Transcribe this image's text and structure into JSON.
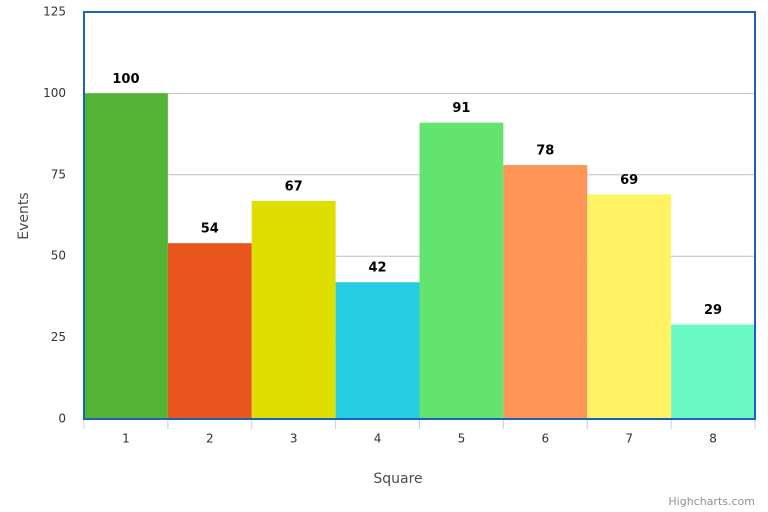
{
  "chart_data": {
    "type": "bar",
    "x_label": "Square",
    "y_label": "Events",
    "categories": [
      "1",
      "2",
      "3",
      "4",
      "5",
      "6",
      "7",
      "8"
    ],
    "values": [
      100,
      54,
      67,
      42,
      91,
      78,
      69,
      29
    ],
    "colors": [
      "#53b335",
      "#e8561e",
      "#dede00",
      "#24cce4",
      "#62e46e",
      "#fe9456",
      "#fff263",
      "#69f9c4"
    ],
    "ylim": [
      0,
      125
    ],
    "yticks": [
      0,
      25,
      50,
      75,
      100,
      125
    ],
    "grid": true,
    "credits": "Highcharts.com"
  }
}
